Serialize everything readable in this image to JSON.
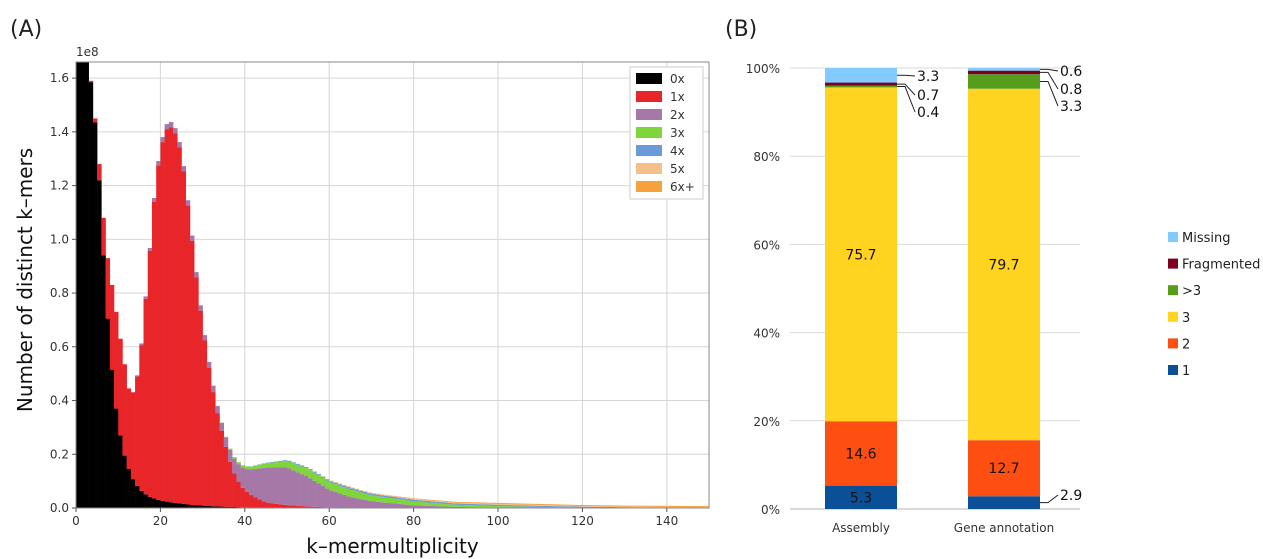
{
  "panel_a_label": "(A)",
  "panel_b_label": "(B)",
  "chart_data": [
    {
      "type": "bar",
      "subtype": "stacked-histogram",
      "xlabel": "k–mermultiplicity",
      "ylabel": "Number of distinct k–mers",
      "y_scale_label": "1e8",
      "xlim": [
        0,
        150
      ],
      "ylim": [
        0,
        1.66
      ],
      "x_ticks": [
        "0",
        "20",
        "40",
        "60",
        "80",
        "100",
        "120",
        "140"
      ],
      "y_ticks": [
        "0.0",
        "0.2",
        "0.4",
        "0.6",
        "0.8",
        "1.0",
        "1.2",
        "1.4",
        "1.6"
      ],
      "grid": true,
      "legend_position": "top-right",
      "x": [
        1,
        3,
        5,
        7,
        9,
        11,
        13,
        15,
        17,
        19,
        21,
        23,
        25,
        27,
        29,
        31,
        33,
        35,
        37,
        39,
        41,
        45,
        50,
        55,
        60,
        65,
        70,
        80,
        90,
        100,
        110,
        120,
        130,
        140,
        150
      ],
      "series": [
        {
          "name": "0x",
          "color": "#000000",
          "values": [
            1.66,
            1.66,
            1.36,
            0.8,
            0.42,
            0.22,
            0.12,
            0.07,
            0.045,
            0.032,
            0.025,
            0.02,
            0.016,
            0.012,
            0.01,
            0.008,
            0.006,
            0.005,
            0.004,
            0.003,
            0.002,
            0.001,
            0.0008,
            0.0005,
            0.0003,
            0.0002,
            0.0001,
            0,
            0,
            0,
            0,
            0,
            0,
            0,
            0
          ]
        },
        {
          "name": "1x",
          "color": "#e8262a",
          "values": [
            0,
            0,
            0.02,
            0.18,
            0.36,
            0.36,
            0.28,
            0.45,
            0.82,
            1.2,
            1.38,
            1.4,
            1.3,
            1.05,
            0.78,
            0.56,
            0.38,
            0.25,
            0.14,
            0.08,
            0.05,
            0.02,
            0.01,
            0.005,
            0.002,
            0.001,
            0,
            0,
            0,
            0,
            0,
            0,
            0,
            0,
            0
          ]
        },
        {
          "name": "2x",
          "color": "#a678a8",
          "values": [
            0,
            0,
            0,
            0,
            0,
            0,
            0,
            0.005,
            0.01,
            0.015,
            0.02,
            0.02,
            0.02,
            0.02,
            0.02,
            0.02,
            0.025,
            0.03,
            0.05,
            0.07,
            0.09,
            0.13,
            0.14,
            0.11,
            0.065,
            0.04,
            0.025,
            0.01,
            0.004,
            0.002,
            0.001,
            0,
            0,
            0,
            0
          ]
        },
        {
          "name": "3x",
          "color": "#7ed63a",
          "values": [
            0,
            0,
            0,
            0,
            0,
            0,
            0,
            0,
            0,
            0,
            0,
            0,
            0,
            0,
            0,
            0,
            0,
            0.002,
            0.005,
            0.008,
            0.01,
            0.015,
            0.025,
            0.03,
            0.03,
            0.028,
            0.022,
            0.015,
            0.008,
            0.005,
            0.003,
            0.002,
            0.001,
            0,
            0
          ]
        },
        {
          "name": "4x",
          "color": "#6a9bd8",
          "values": [
            0,
            0,
            0,
            0,
            0,
            0,
            0,
            0,
            0,
            0,
            0,
            0,
            0,
            0,
            0,
            0,
            0,
            0,
            0,
            0,
            0.001,
            0.002,
            0.003,
            0.004,
            0.005,
            0.006,
            0.006,
            0.006,
            0.005,
            0.005,
            0.004,
            0.003,
            0.002,
            0.002,
            0.001
          ]
        },
        {
          "name": "5x",
          "color": "#f3c08a",
          "values": [
            0,
            0,
            0,
            0,
            0,
            0,
            0,
            0,
            0,
            0,
            0,
            0,
            0,
            0,
            0,
            0,
            0,
            0,
            0,
            0,
            0,
            0,
            0,
            0.001,
            0.002,
            0.002,
            0.002,
            0.003,
            0.003,
            0.003,
            0.003,
            0.002,
            0.002,
            0.002,
            0.002
          ]
        },
        {
          "name": "6x+",
          "color": "#f6a23c",
          "values": [
            0,
            0,
            0,
            0,
            0,
            0,
            0,
            0,
            0,
            0,
            0,
            0,
            0,
            0,
            0,
            0,
            0,
            0,
            0,
            0,
            0,
            0,
            0,
            0,
            0,
            0.001,
            0.001,
            0.002,
            0.003,
            0.004,
            0.004,
            0.004,
            0.004,
            0.004,
            0.004
          ]
        }
      ]
    },
    {
      "type": "bar",
      "subtype": "stacked-percent",
      "categories": [
        "Assembly",
        "Gene annotation"
      ],
      "y_ticks": [
        "0%",
        "20%",
        "40%",
        "60%",
        "80%",
        "100%"
      ],
      "ylim": [
        0,
        100
      ],
      "grid": true,
      "legend_position": "right",
      "series": [
        {
          "name": "1",
          "color": "#0b4f97",
          "values": [
            5.3,
            2.9
          ],
          "labels": [
            "5.3",
            "2.9"
          ]
        },
        {
          "name": "2",
          "color": "#ff4e12",
          "values": [
            14.6,
            12.7
          ],
          "labels": [
            "14.6",
            "12.7"
          ]
        },
        {
          "name": "3",
          "color": "#ffd320",
          "values": [
            75.7,
            79.7
          ],
          "labels": [
            "75.7",
            "79.7"
          ]
        },
        {
          "name": ">3",
          "color": "#579d1c",
          "values": [
            0.4,
            3.3
          ],
          "labels": [
            "0.4",
            "3.3"
          ]
        },
        {
          "name": "Fragmented",
          "color": "#7e0021",
          "values": [
            0.7,
            0.8
          ],
          "labels": [
            "0.7",
            "0.8"
          ]
        },
        {
          "name": "Missing",
          "color": "#83caff",
          "values": [
            3.3,
            0.6
          ],
          "labels": [
            "3.3",
            "0.6"
          ]
        }
      ],
      "legend_order": [
        "Missing",
        "Fragmented",
        ">3",
        "3",
        "2",
        "1"
      ]
    }
  ]
}
